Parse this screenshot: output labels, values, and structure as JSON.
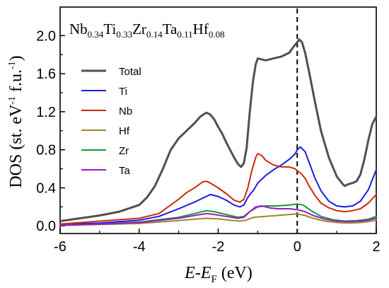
{
  "chart_data": {
    "type": "line",
    "title": {
      "parts": [
        {
          "base": "Nb",
          "sub": "0.34"
        },
        {
          "base": "Ti",
          "sub": "0.33"
        },
        {
          "base": "Zr",
          "sub": "0.14"
        },
        {
          "base": "Ta",
          "sub": "0.11"
        },
        {
          "base": "Hf",
          "sub": "0.08"
        }
      ]
    },
    "xlabel": {
      "italic": "E",
      "mid": "-",
      "italic2": "E",
      "sub": "F",
      "tail": " (eV)"
    },
    "ylabel": {
      "text": "DOS (st. eV",
      "sup1": "-1",
      "mid": " f.u.",
      "sup2": "-1",
      "tail": ")"
    },
    "xlim": [
      -6,
      2
    ],
    "ylim": [
      -0.08,
      2.3
    ],
    "xticks": [
      -6,
      -4,
      -2,
      0,
      2
    ],
    "xtick_labels": [
      "-6",
      "-4",
      "-2",
      "0",
      "2"
    ],
    "yticks": [
      0.0,
      0.4,
      0.8,
      1.2,
      1.6,
      2.0
    ],
    "ytick_labels": [
      "0.0",
      "0.4",
      "0.8",
      "1.2",
      "1.6",
      "2.0"
    ],
    "fermi_level_x": 0,
    "legend_position": "left",
    "grid": false,
    "series": [
      {
        "name": "Total",
        "color": "#505050",
        "points": [
          [
            -6,
            0.05
          ],
          [
            -5.5,
            0.08
          ],
          [
            -5,
            0.11
          ],
          [
            -4.5,
            0.15
          ],
          [
            -4,
            0.22
          ],
          [
            -3.8,
            0.3
          ],
          [
            -3.6,
            0.42
          ],
          [
            -3.4,
            0.6
          ],
          [
            -3.2,
            0.8
          ],
          [
            -3.0,
            0.92
          ],
          [
            -2.8,
            1.0
          ],
          [
            -2.6,
            1.08
          ],
          [
            -2.45,
            1.15
          ],
          [
            -2.3,
            1.19
          ],
          [
            -2.2,
            1.17
          ],
          [
            -2.1,
            1.12
          ],
          [
            -2.0,
            1.04
          ],
          [
            -1.9,
            0.97
          ],
          [
            -1.8,
            0.88
          ],
          [
            -1.7,
            0.8
          ],
          [
            -1.6,
            0.72
          ],
          [
            -1.5,
            0.65
          ],
          [
            -1.42,
            0.62
          ],
          [
            -1.35,
            0.66
          ],
          [
            -1.28,
            0.82
          ],
          [
            -1.2,
            1.2
          ],
          [
            -1.12,
            1.52
          ],
          [
            -1.05,
            1.7
          ],
          [
            -1.0,
            1.76
          ],
          [
            -0.9,
            1.75
          ],
          [
            -0.8,
            1.74
          ],
          [
            -0.6,
            1.76
          ],
          [
            -0.4,
            1.78
          ],
          [
            -0.2,
            1.82
          ],
          [
            -0.1,
            1.88
          ],
          [
            0,
            1.93
          ],
          [
            0.05,
            1.96
          ],
          [
            0.12,
            1.93
          ],
          [
            0.2,
            1.82
          ],
          [
            0.3,
            1.62
          ],
          [
            0.45,
            1.3
          ],
          [
            0.6,
            1.0
          ],
          [
            0.8,
            0.72
          ],
          [
            1.0,
            0.52
          ],
          [
            1.15,
            0.44
          ],
          [
            1.2,
            0.42
          ],
          [
            1.3,
            0.44
          ],
          [
            1.4,
            0.45
          ],
          [
            1.5,
            0.47
          ],
          [
            1.6,
            0.54
          ],
          [
            1.7,
            0.7
          ],
          [
            1.8,
            0.9
          ],
          [
            1.9,
            1.07
          ],
          [
            2.0,
            1.15
          ]
        ]
      },
      {
        "name": "Ti",
        "color": "#1a1ae6",
        "points": [
          [
            -6,
            0.015
          ],
          [
            -5,
            0.03
          ],
          [
            -4,
            0.06
          ],
          [
            -3.5,
            0.1
          ],
          [
            -3.0,
            0.18
          ],
          [
            -2.6,
            0.25
          ],
          [
            -2.3,
            0.31
          ],
          [
            -2.2,
            0.33
          ],
          [
            -2.0,
            0.31
          ],
          [
            -1.8,
            0.27
          ],
          [
            -1.6,
            0.22
          ],
          [
            -1.45,
            0.2
          ],
          [
            -1.35,
            0.22
          ],
          [
            -1.25,
            0.3
          ],
          [
            -1.1,
            0.38
          ],
          [
            -1.0,
            0.45
          ],
          [
            -0.8,
            0.53
          ],
          [
            -0.6,
            0.59
          ],
          [
            -0.4,
            0.64
          ],
          [
            -0.2,
            0.7
          ],
          [
            -0.05,
            0.76
          ],
          [
            0.0,
            0.8
          ],
          [
            0.08,
            0.83
          ],
          [
            0.2,
            0.78
          ],
          [
            0.3,
            0.67
          ],
          [
            0.45,
            0.5
          ],
          [
            0.6,
            0.37
          ],
          [
            0.8,
            0.26
          ],
          [
            1.0,
            0.21
          ],
          [
            1.2,
            0.2
          ],
          [
            1.4,
            0.21
          ],
          [
            1.6,
            0.26
          ],
          [
            1.8,
            0.38
          ],
          [
            2.0,
            0.59
          ]
        ]
      },
      {
        "name": "Nb",
        "color": "#cc2a0a",
        "points": [
          [
            -6,
            0.02
          ],
          [
            -5,
            0.05
          ],
          [
            -4,
            0.08
          ],
          [
            -3.5,
            0.13
          ],
          [
            -3.0,
            0.28
          ],
          [
            -2.8,
            0.35
          ],
          [
            -2.6,
            0.4
          ],
          [
            -2.4,
            0.46
          ],
          [
            -2.3,
            0.47
          ],
          [
            -2.2,
            0.45
          ],
          [
            -2.0,
            0.4
          ],
          [
            -1.8,
            0.34
          ],
          [
            -1.6,
            0.27
          ],
          [
            -1.45,
            0.25
          ],
          [
            -1.35,
            0.28
          ],
          [
            -1.25,
            0.4
          ],
          [
            -1.15,
            0.58
          ],
          [
            -1.05,
            0.72
          ],
          [
            -1.0,
            0.76
          ],
          [
            -0.9,
            0.74
          ],
          [
            -0.8,
            0.69
          ],
          [
            -0.6,
            0.64
          ],
          [
            -0.4,
            0.62
          ],
          [
            -0.2,
            0.62
          ],
          [
            -0.05,
            0.6
          ],
          [
            0.0,
            0.58
          ],
          [
            0.1,
            0.55
          ],
          [
            0.2,
            0.5
          ],
          [
            0.3,
            0.42
          ],
          [
            0.45,
            0.32
          ],
          [
            0.6,
            0.24
          ],
          [
            0.8,
            0.19
          ],
          [
            1.0,
            0.16
          ],
          [
            1.2,
            0.15
          ],
          [
            1.4,
            0.16
          ],
          [
            1.6,
            0.18
          ],
          [
            1.8,
            0.24
          ],
          [
            2.0,
            0.33
          ]
        ]
      },
      {
        "name": "Hf",
        "color": "#9a8a2a",
        "points": [
          [
            -6,
            0.005
          ],
          [
            -5,
            0.015
          ],
          [
            -4,
            0.025
          ],
          [
            -3.0,
            0.055
          ],
          [
            -2.6,
            0.07
          ],
          [
            -2.3,
            0.08
          ],
          [
            -2.0,
            0.075
          ],
          [
            -1.7,
            0.06
          ],
          [
            -1.45,
            0.05
          ],
          [
            -1.3,
            0.06
          ],
          [
            -1.1,
            0.09
          ],
          [
            -0.8,
            0.1
          ],
          [
            -0.5,
            0.11
          ],
          [
            -0.2,
            0.12
          ],
          [
            0.0,
            0.125
          ],
          [
            0.2,
            0.11
          ],
          [
            0.4,
            0.08
          ],
          [
            0.7,
            0.05
          ],
          [
            1.0,
            0.035
          ],
          [
            1.3,
            0.03
          ],
          [
            1.6,
            0.035
          ],
          [
            1.8,
            0.045
          ],
          [
            2.0,
            0.06
          ]
        ]
      },
      {
        "name": "Zr",
        "color": "#129a3a",
        "points": [
          [
            -6,
            0.008
          ],
          [
            -5,
            0.02
          ],
          [
            -4,
            0.04
          ],
          [
            -3.0,
            0.09
          ],
          [
            -2.6,
            0.13
          ],
          [
            -2.3,
            0.16
          ],
          [
            -2.1,
            0.15
          ],
          [
            -1.8,
            0.12
          ],
          [
            -1.5,
            0.09
          ],
          [
            -1.35,
            0.1
          ],
          [
            -1.2,
            0.15
          ],
          [
            -1.0,
            0.2
          ],
          [
            -0.8,
            0.21
          ],
          [
            -0.5,
            0.21
          ],
          [
            -0.2,
            0.22
          ],
          [
            0.0,
            0.23
          ],
          [
            0.15,
            0.22
          ],
          [
            0.35,
            0.16
          ],
          [
            0.6,
            0.1
          ],
          [
            0.9,
            0.065
          ],
          [
            1.2,
            0.05
          ],
          [
            1.5,
            0.055
          ],
          [
            1.8,
            0.07
          ],
          [
            2.0,
            0.1
          ]
        ]
      },
      {
        "name": "Ta",
        "color": "#9a1ac8",
        "points": [
          [
            -6,
            0.008
          ],
          [
            -5,
            0.018
          ],
          [
            -4,
            0.035
          ],
          [
            -3.0,
            0.08
          ],
          [
            -2.6,
            0.11
          ],
          [
            -2.3,
            0.13
          ],
          [
            -2.1,
            0.12
          ],
          [
            -1.8,
            0.1
          ],
          [
            -1.5,
            0.08
          ],
          [
            -1.35,
            0.09
          ],
          [
            -1.2,
            0.15
          ],
          [
            -1.05,
            0.2
          ],
          [
            -0.9,
            0.21
          ],
          [
            -0.7,
            0.19
          ],
          [
            -0.5,
            0.18
          ],
          [
            -0.2,
            0.18
          ],
          [
            0.0,
            0.17
          ],
          [
            0.2,
            0.15
          ],
          [
            0.4,
            0.11
          ],
          [
            0.7,
            0.07
          ],
          [
            1.0,
            0.05
          ],
          [
            1.3,
            0.045
          ],
          [
            1.6,
            0.05
          ],
          [
            1.8,
            0.06
          ],
          [
            2.0,
            0.08
          ]
        ]
      }
    ]
  }
}
